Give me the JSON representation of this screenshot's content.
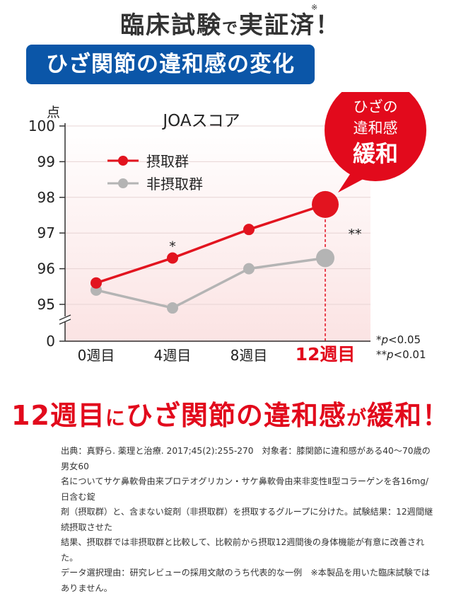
{
  "headline": {
    "main": "臨床試験",
    "particle": "で",
    "main2": "実証済",
    "mark": "※",
    "exclaim": "！"
  },
  "banner": {
    "title": "ひざ関節の違和感の変化"
  },
  "callout": {
    "line1": "ひざの",
    "line2": "違和感",
    "line3": "緩和"
  },
  "chart_data": {
    "type": "line",
    "title": "JOAスコア",
    "ylabel": "点",
    "xlabel": "",
    "categories": [
      "0週目",
      "4週目",
      "8週目",
      "12週目"
    ],
    "ylim": [
      95,
      100
    ],
    "yticks": [
      95,
      96,
      97,
      98,
      99,
      100
    ],
    "ytick_labels": [
      "0",
      "95",
      "96",
      "97",
      "98",
      "99",
      "100"
    ],
    "series": [
      {
        "name": "摂取群",
        "values": [
          95.6,
          96.3,
          97.1,
          97.8
        ],
        "color": "#e2141f"
      },
      {
        "name": "非摂取群",
        "values": [
          95.4,
          94.9,
          96.0,
          96.3
        ],
        "color": "#b4b4b4"
      }
    ],
    "annotations": [
      {
        "category": "4週目",
        "text": "*"
      },
      {
        "category": "12週目",
        "text": "**"
      }
    ],
    "significance_notes": [
      {
        "stars": "*",
        "p": "p",
        "rest": "<0.05"
      },
      {
        "stars": "**",
        "p": "p",
        "rest": "<0.01"
      }
    ],
    "legend_position": "top-left",
    "y_axis_break": true
  },
  "conclusion": {
    "part1": "12週目",
    "part2": "に",
    "part3": "ひざ関節の違和感",
    "part4": "が",
    "part5": "緩和",
    "part6": "！"
  },
  "source": {
    "lines": [
      "出典：真野ら. 薬理と治療. 2017;45(2):255-270　対象者：膝関節に違和感がある40〜70歳の男女60",
      "名についてサケ鼻軟骨由来プロテオグリカン・サケ鼻軟骨由来非変性Ⅱ型コラーゲンを各16mg/日含む錠",
      "剤（摂取群）と、含まない錠剤（非摂取群）を摂取するグループに分けた。試験結果：12週間継続摂取させた",
      "結果、摂取群では非摂取群と比較して、比較前から摂取12週間後の身体機能が有意に改善された。",
      "データ選択理由：研究レビューの採用文献のうち代表的な一例　※本製品を用いた臨床試験ではありません。"
    ]
  },
  "colors": {
    "accent_red": "#e20a1c",
    "banner_blue": "#0b56a8",
    "plot_bg_top": "#ffffff",
    "plot_bg_bottom": "#fbe3e3"
  }
}
